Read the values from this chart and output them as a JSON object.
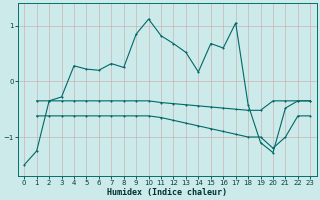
{
  "title": "",
  "xlabel": "Humidex (Indice chaleur)",
  "bg_color": "#cdeaea",
  "line_color": "#006868",
  "grid_color": "#b8d8d8",
  "xlim": [
    -0.5,
    23.5
  ],
  "ylim": [
    -1.7,
    1.4
  ],
  "yticks": [
    -1,
    0,
    1
  ],
  "xticks": [
    0,
    1,
    2,
    3,
    4,
    5,
    6,
    7,
    8,
    9,
    10,
    11,
    12,
    13,
    14,
    15,
    16,
    17,
    18,
    19,
    20,
    21,
    22,
    23
  ],
  "line1_x": [
    0,
    1,
    2,
    3,
    4,
    5,
    6,
    7,
    8,
    9,
    10,
    11,
    12,
    13,
    14,
    15,
    16,
    17,
    18,
    19,
    20,
    21,
    22,
    23
  ],
  "line1_y": [
    -1.5,
    -1.25,
    -0.35,
    -0.28,
    0.28,
    0.22,
    0.2,
    0.32,
    0.25,
    0.85,
    1.12,
    0.82,
    0.68,
    0.52,
    0.17,
    0.68,
    0.6,
    1.05,
    -0.42,
    -1.1,
    -1.28,
    -0.48,
    -0.35,
    -0.35
  ],
  "line2_x": [
    1,
    2,
    3,
    4,
    5,
    6,
    7,
    8,
    9,
    10,
    11,
    12,
    13,
    14,
    15,
    16,
    17,
    18,
    19,
    20,
    21,
    22,
    23
  ],
  "line2_y": [
    -0.35,
    -0.35,
    -0.35,
    -0.35,
    -0.35,
    -0.35,
    -0.35,
    -0.35,
    -0.35,
    -0.35,
    -0.38,
    -0.4,
    -0.42,
    -0.44,
    -0.46,
    -0.48,
    -0.5,
    -0.52,
    -0.52,
    -0.35,
    -0.35,
    -0.35,
    -0.35
  ],
  "line3_x": [
    1,
    2,
    3,
    4,
    5,
    6,
    7,
    8,
    9,
    10,
    11,
    12,
    13,
    14,
    15,
    16,
    17,
    18,
    19,
    20,
    21,
    22,
    23
  ],
  "line3_y": [
    -0.62,
    -0.62,
    -0.62,
    -0.62,
    -0.62,
    -0.62,
    -0.62,
    -0.62,
    -0.62,
    -0.62,
    -0.65,
    -0.7,
    -0.75,
    -0.8,
    -0.85,
    -0.9,
    -0.95,
    -1.0,
    -1.0,
    -1.2,
    -1.0,
    -0.62,
    -0.62
  ]
}
